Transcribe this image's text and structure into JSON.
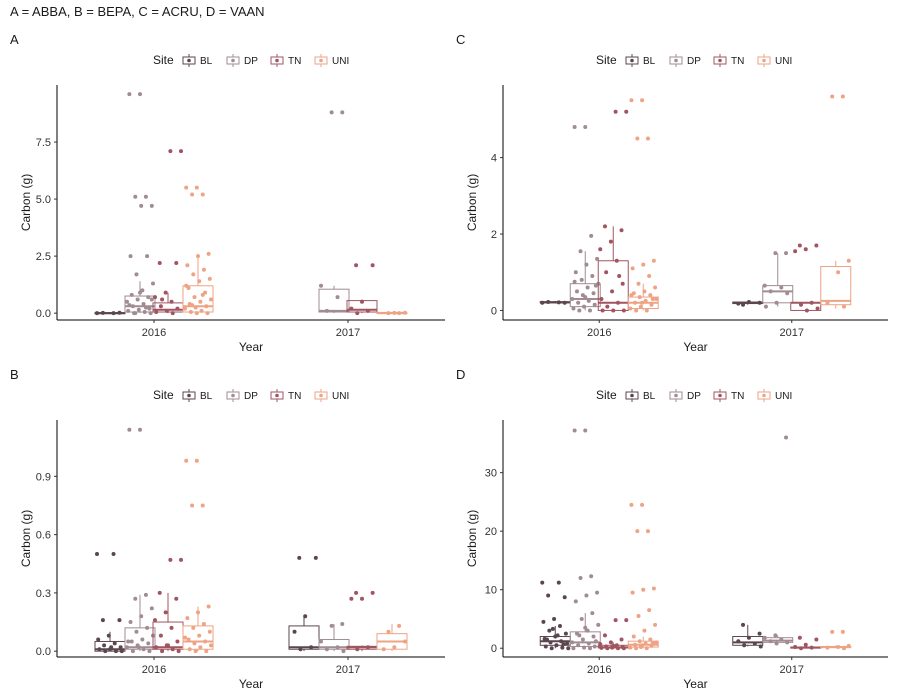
{
  "figure_title": "A = ABBA, B = BEPA, C = ACRU, D = VAAN",
  "legend": {
    "title": "Site",
    "entries": [
      {
        "label": "BL",
        "color": "#5b4650"
      },
      {
        "label": "DP",
        "color": "#a08c92"
      },
      {
        "label": "TN",
        "color": "#a05560"
      },
      {
        "label": "UNI",
        "color": "#eea384"
      }
    ]
  },
  "chart_data": [
    {
      "panel": "A",
      "type": "boxplot",
      "xlabel": "Year",
      "ylabel": "Carbon (g)",
      "categories": [
        "2016",
        "2017"
      ],
      "ylim": [
        -0.3,
        10.0
      ],
      "yticks": [
        0.0,
        2.5,
        5.0,
        7.5
      ],
      "ytick_labels": [
        "0.0",
        "2.5",
        "5.0",
        "7.5"
      ],
      "series": [
        {
          "name": "BL",
          "boxes": [
            {
              "year": "2016",
              "min": 0.0,
              "q1": 0.0,
              "median": 0.0,
              "q3": 0.02,
              "max": 0.05,
              "points": [
                0.0,
                0.0,
                0.01,
                0.02
              ]
            },
            null
          ]
        },
        {
          "name": "DP",
          "boxes": [
            {
              "year": "2016",
              "min": 0.0,
              "q1": 0.05,
              "median": 0.3,
              "q3": 0.75,
              "max": 1.4,
              "points": [
                9.6,
                9.6,
                5.1,
                5.1,
                4.7,
                4.7,
                2.5,
                2.5,
                1.7,
                1.3,
                1.0,
                0.8,
                0.7,
                0.6,
                0.5,
                0.4,
                0.3,
                0.2,
                0.15,
                0.1,
                0.05,
                0.0,
                0.0,
                0.9,
                0.35,
                0.25,
                0.0,
                0.6
              ]
            },
            {
              "year": "2017",
              "min": 0.0,
              "q1": 0.05,
              "median": 0.1,
              "q3": 1.05,
              "max": 1.2,
              "points": [
                8.8,
                8.8,
                1.2,
                0.7,
                0.1
              ]
            }
          ]
        },
        {
          "name": "TN",
          "boxes": [
            {
              "year": "2016",
              "min": 0.0,
              "q1": 0.05,
              "median": 0.15,
              "q3": 0.45,
              "max": 0.9,
              "points": [
                7.1,
                7.1,
                2.2,
                2.2,
                0.9,
                0.7,
                0.5,
                0.3,
                0.2,
                0.1,
                0.05,
                0.0,
                0.6
              ]
            },
            {
              "year": "2017",
              "min": 0.0,
              "q1": 0.05,
              "median": 0.15,
              "q3": 0.55,
              "max": 0.6,
              "points": [
                2.1,
                2.1,
                0.5,
                0.2,
                0.1,
                0.0
              ]
            }
          ]
        },
        {
          "name": "UNI",
          "boxes": [
            {
              "year": "2016",
              "min": 0.0,
              "q1": 0.05,
              "median": 0.3,
              "q3": 1.2,
              "max": 2.6,
              "points": [
                5.5,
                5.5,
                5.2,
                5.2,
                2.6,
                2.5,
                2.1,
                1.9,
                1.7,
                1.5,
                1.4,
                1.1,
                0.9,
                0.7,
                0.6,
                0.5,
                0.4,
                0.3,
                0.25,
                0.2,
                0.1,
                0.05,
                0.0,
                0.0,
                1.2,
                0.8,
                0.35
              ]
            },
            {
              "year": "2017",
              "min": 0.0,
              "q1": 0.0,
              "median": 0.01,
              "q3": 0.02,
              "max": 0.05,
              "points": [
                0.0,
                0.0,
                0.02,
                0.01
              ]
            }
          ]
        }
      ]
    },
    {
      "panel": "C",
      "type": "boxplot",
      "xlabel": "Year",
      "ylabel": "Carbon (g)",
      "categories": [
        "2016",
        "2017"
      ],
      "ylim": [
        -0.25,
        5.9
      ],
      "yticks": [
        0,
        2,
        4
      ],
      "ytick_labels": [
        "0",
        "2",
        "4"
      ],
      "series": [
        {
          "name": "BL",
          "boxes": [
            {
              "year": "2016",
              "min": 0.18,
              "q1": 0.2,
              "median": 0.21,
              "q3": 0.23,
              "max": 0.25,
              "points": [
                0.2,
                0.21,
                0.22,
                0.2
              ]
            },
            {
              "year": "2017",
              "min": 0.15,
              "q1": 0.18,
              "median": 0.2,
              "q3": 0.22,
              "max": 0.25,
              "points": [
                0.15,
                0.2,
                0.22,
                0.18
              ]
            }
          ]
        },
        {
          "name": "DP",
          "boxes": [
            {
              "year": "2016",
              "min": 0.0,
              "q1": 0.1,
              "median": 0.3,
              "q3": 0.7,
              "max": 1.55,
              "points": [
                4.8,
                4.8,
                1.95,
                1.55,
                1.35,
                1.2,
                1.0,
                0.9,
                0.8,
                0.7,
                0.6,
                0.5,
                0.45,
                0.4,
                0.3,
                0.25,
                0.2,
                0.15,
                0.1,
                0.05,
                0.0,
                0.0,
                0.65,
                0.35,
                0.75
              ]
            },
            {
              "year": "2017",
              "min": 0.1,
              "q1": 0.2,
              "median": 0.5,
              "q3": 0.65,
              "max": 1.5,
              "points": [
                1.5,
                1.5,
                0.65,
                0.6,
                0.5,
                0.45,
                0.2,
                0.1
              ]
            }
          ]
        },
        {
          "name": "TN",
          "boxes": [
            {
              "year": "2016",
              "min": 0.0,
              "q1": 0.0,
              "median": 0.2,
              "q3": 1.3,
              "max": 2.2,
              "points": [
                5.2,
                5.2,
                2.2,
                2.1,
                1.8,
                1.6,
                1.3,
                1.0,
                0.7,
                0.5,
                0.3,
                0.2,
                0.1,
                0.0,
                0.0,
                0.0,
                0.9
              ]
            },
            {
              "year": "2017",
              "min": 0.0,
              "q1": 0.0,
              "median": 0.2,
              "q3": 0.2,
              "max": 0.2,
              "points": [
                1.7,
                1.7,
                1.6,
                1.55,
                0.2,
                0.15,
                0.05,
                0.0
              ]
            }
          ]
        },
        {
          "name": "UNI",
          "boxes": [
            {
              "year": "2016",
              "min": 0.0,
              "q1": 0.05,
              "median": 0.2,
              "q3": 0.35,
              "max": 0.7,
              "points": [
                5.5,
                5.5,
                4.5,
                4.5,
                1.3,
                1.2,
                1.1,
                0.9,
                0.7,
                0.6,
                0.5,
                0.45,
                0.4,
                0.35,
                0.3,
                0.25,
                0.2,
                0.15,
                0.1,
                0.05,
                0.0,
                0.0,
                0.3,
                0.2,
                0.4
              ]
            },
            {
              "year": "2017",
              "min": 0.05,
              "q1": 0.15,
              "median": 0.25,
              "q3": 1.15,
              "max": 1.3,
              "points": [
                5.6,
                5.6,
                1.3,
                1.0,
                0.2,
                0.1
              ]
            }
          ]
        }
      ]
    },
    {
      "panel": "B",
      "type": "boxplot",
      "xlabel": "Year",
      "ylabel": "Carbon (g)",
      "categories": [
        "2016",
        "2017"
      ],
      "ylim": [
        -0.03,
        1.19
      ],
      "yticks": [
        0.0,
        0.3,
        0.6,
        0.9
      ],
      "ytick_labels": [
        "0.0",
        "0.3",
        "0.6",
        "0.9"
      ],
      "series": [
        {
          "name": "BL",
          "boxes": [
            {
              "year": "2016",
              "min": 0.0,
              "q1": 0.0,
              "median": 0.01,
              "q3": 0.05,
              "max": 0.1,
              "points": [
                0.5,
                0.5,
                0.16,
                0.16,
                0.08,
                0.06,
                0.04,
                0.03,
                0.02,
                0.01,
                0.01,
                0.0,
                0.0,
                0.0,
                0.02
              ]
            },
            {
              "year": "2017",
              "min": 0.0,
              "q1": 0.01,
              "median": 0.02,
              "q3": 0.13,
              "max": 0.18,
              "points": [
                0.48,
                0.48,
                0.18,
                0.1,
                0.02,
                0.01
              ]
            }
          ]
        },
        {
          "name": "DP",
          "boxes": [
            {
              "year": "2016",
              "min": 0.0,
              "q1": 0.01,
              "median": 0.02,
              "q3": 0.12,
              "max": 0.29,
              "points": [
                1.14,
                1.14,
                0.29,
                0.27,
                0.22,
                0.18,
                0.15,
                0.12,
                0.1,
                0.08,
                0.06,
                0.05,
                0.04,
                0.03,
                0.02,
                0.01,
                0.0,
                0.0,
                0.02,
                0.05
              ]
            },
            {
              "year": "2017",
              "min": 0.0,
              "q1": 0.01,
              "median": 0.02,
              "q3": 0.06,
              "max": 0.14,
              "points": [
                0.14,
                0.13,
                0.05,
                0.02,
                0.01,
                0.0
              ]
            }
          ]
        },
        {
          "name": "TN",
          "boxes": [
            {
              "year": "2016",
              "min": 0.0,
              "q1": 0.01,
              "median": 0.02,
              "q3": 0.15,
              "max": 0.3,
              "points": [
                0.47,
                0.47,
                0.3,
                0.27,
                0.2,
                0.16,
                0.12,
                0.08,
                0.05,
                0.03,
                0.02,
                0.01,
                0.0,
                0.0,
                0.03
              ]
            },
            {
              "year": "2017",
              "min": 0.0,
              "q1": 0.01,
              "median": 0.02,
              "q3": 0.025,
              "max": 0.03,
              "points": [
                0.3,
                0.3,
                0.27,
                0.27,
                0.02,
                0.01
              ]
            }
          ]
        },
        {
          "name": "UNI",
          "boxes": [
            {
              "year": "2016",
              "min": 0.0,
              "q1": 0.01,
              "median": 0.05,
              "q3": 0.13,
              "max": 0.23,
              "points": [
                0.98,
                0.98,
                0.75,
                0.75,
                0.23,
                0.2,
                0.17,
                0.14,
                0.12,
                0.1,
                0.08,
                0.06,
                0.05,
                0.04,
                0.03,
                0.02,
                0.01,
                0.0,
                0.0,
                0.07
              ]
            },
            {
              "year": "2017",
              "min": 0.0,
              "q1": 0.01,
              "median": 0.05,
              "q3": 0.09,
              "max": 0.14,
              "points": [
                0.13,
                0.1,
                0.05,
                0.02,
                0.01
              ]
            }
          ]
        }
      ]
    },
    {
      "panel": "D",
      "type": "boxplot",
      "xlabel": "Year",
      "ylabel": "Carbon (g)",
      "categories": [
        "2016",
        "2017"
      ],
      "ylim": [
        -1.5,
        39
      ],
      "yticks": [
        0,
        10,
        20,
        30
      ],
      "ytick_labels": [
        "0",
        "10",
        "20",
        "30"
      ],
      "series": [
        {
          "name": "BL",
          "boxes": [
            {
              "year": "2016",
              "min": 0.0,
              "q1": 0.5,
              "median": 1.2,
              "q3": 2.0,
              "max": 3.8,
              "points": [
                11.2,
                11.2,
                9.0,
                8.7,
                5.0,
                4.5,
                3.8,
                3.0,
                2.5,
                2.0,
                1.6,
                1.2,
                1.0,
                0.8,
                0.5,
                0.3,
                0.1,
                0.0,
                0.0,
                2.2,
                1.5,
                0.7,
                3.3
              ]
            },
            {
              "year": "2017",
              "min": 0.3,
              "q1": 0.5,
              "median": 1.0,
              "q3": 2.0,
              "max": 4.0,
              "points": [
                4.0,
                2.5,
                1.8,
                1.2,
                0.8,
                0.5,
                0.3
              ]
            }
          ]
        },
        {
          "name": "DP",
          "boxes": [
            {
              "year": "2016",
              "min": 0.0,
              "q1": 0.3,
              "median": 1.0,
              "q3": 2.8,
              "max": 6.0,
              "points": [
                37.2,
                37.2,
                12.3,
                12.0,
                9.5,
                9.0,
                8.0,
                6.0,
                5.0,
                4.0,
                3.0,
                2.5,
                2.0,
                1.5,
                1.0,
                0.8,
                0.5,
                0.3,
                0.1,
                0.0,
                0.0,
                2.2,
                1.2,
                3.5
              ]
            },
            {
              "year": "2017",
              "min": 0.8,
              "q1": 1.0,
              "median": 1.3,
              "q3": 1.8,
              "max": 2.2,
              "points": [
                36.0,
                2.2,
                1.8,
                1.5,
                1.2,
                1.0,
                0.8
              ]
            }
          ]
        },
        {
          "name": "TN",
          "boxes": [
            {
              "year": "2016",
              "min": 0.0,
              "q1": 0.05,
              "median": 0.15,
              "q3": 0.5,
              "max": 1.0,
              "points": [
                4.8,
                4.8,
                2.2,
                1.5,
                1.0,
                0.7,
                0.5,
                0.3,
                0.2,
                0.1,
                0.05,
                0.0,
                0.0,
                0.0,
                0.4
              ]
            },
            {
              "year": "2017",
              "min": 0.0,
              "q1": 0.05,
              "median": 0.1,
              "q3": 0.2,
              "max": 0.3,
              "points": [
                1.8,
                1.5,
                0.6,
                0.2,
                0.1,
                0.0
              ]
            }
          ]
        },
        {
          "name": "UNI",
          "boxes": [
            {
              "year": "2016",
              "min": 0.0,
              "q1": 0.2,
              "median": 0.6,
              "q3": 1.2,
              "max": 2.0,
              "points": [
                24.5,
                24.5,
                20.0,
                20.0,
                10.2,
                10.0,
                9.5,
                6.5,
                5.5,
                4.0,
                3.0,
                2.0,
                1.5,
                1.2,
                1.0,
                0.8,
                0.6,
                0.4,
                0.2,
                0.1,
                0.0,
                0.0,
                0.9,
                0.5
              ]
            },
            {
              "year": "2017",
              "min": 0.0,
              "q1": 0.1,
              "median": 0.2,
              "q3": 0.3,
              "max": 0.5,
              "points": [
                2.8,
                2.8,
                0.4,
                0.2,
                0.1,
                0.0
              ]
            }
          ]
        }
      ]
    }
  ]
}
